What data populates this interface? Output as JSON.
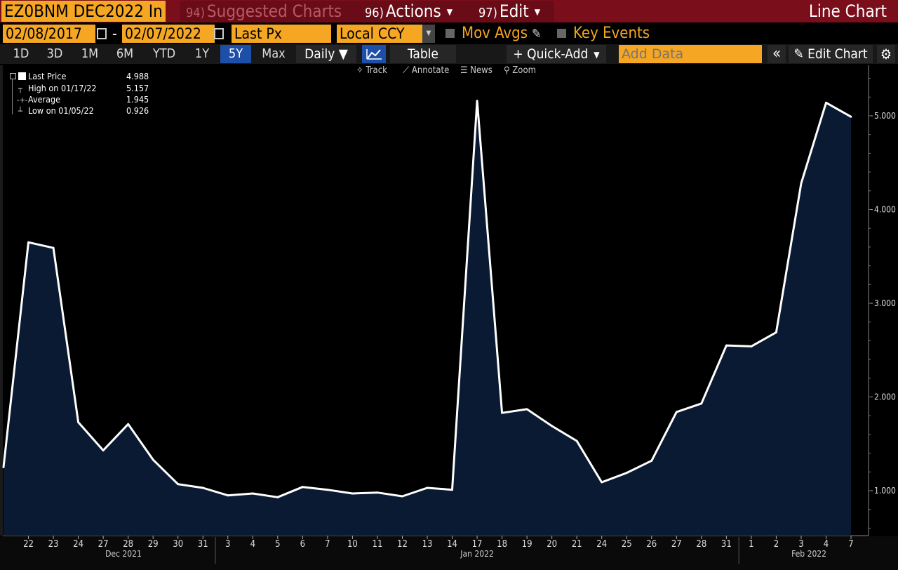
{
  "header": {
    "ticker": "EZ0BNM DEC2022 In",
    "suggested": {
      "num": "94)",
      "label": "Suggested Charts"
    },
    "actions": {
      "num": "96)",
      "label": "Actions"
    },
    "edit": {
      "num": "97)",
      "label": "Edit"
    },
    "title": "Line Chart"
  },
  "controls": {
    "start_date": "02/08/2017",
    "dash": "-",
    "end_date": "02/07/2022",
    "field": "Last Px",
    "currency": "Local CCY",
    "mov_avgs": "Mov Avgs",
    "key_events": "Key Events"
  },
  "ranges": [
    "1D",
    "3D",
    "1M",
    "6M",
    "YTD",
    "1Y",
    "5Y",
    "Max"
  ],
  "selected_range": "5Y",
  "toolbar": {
    "period": "Daily ▼",
    "table": "Table",
    "quick_add": "+ Quick-Add",
    "add_data_placeholder": "Add Data",
    "edit_chart": "Edit Chart"
  },
  "tools": {
    "track": "Track",
    "annotate": "Annotate",
    "news": "News",
    "zoom": "Zoom"
  },
  "legend": {
    "last_label": "Last Price",
    "last_value": "4.988",
    "high_label": "High on 01/17/22",
    "high_value": "5.157",
    "avg_label": "Average",
    "avg_value": "1.945",
    "low_label": "Low on 01/05/22",
    "low_value": "0.926"
  },
  "colors": {
    "line": "#ffffff",
    "fill": "#0b1a33",
    "accent": "#f5a623",
    "header": "#7a0e1a"
  },
  "chart_data": {
    "type": "area",
    "x": [
      "Dec 21",
      "22",
      "23",
      "24",
      "27",
      "28",
      "29",
      "30",
      "31",
      "3",
      "4",
      "5",
      "6",
      "7",
      "10",
      "11",
      "12",
      "13",
      "14",
      "17",
      "18",
      "19",
      "20",
      "21",
      "24",
      "25",
      "26",
      "27",
      "28",
      "31",
      "1",
      "2",
      "3",
      "4",
      "7"
    ],
    "values": [
      1.25,
      3.65,
      3.59,
      1.73,
      1.43,
      1.71,
      1.33,
      1.07,
      1.03,
      0.95,
      0.97,
      0.93,
      1.04,
      1.01,
      0.97,
      0.98,
      0.94,
      1.03,
      1.01,
      5.16,
      1.83,
      1.87,
      1.69,
      1.53,
      1.09,
      1.19,
      1.32,
      1.84,
      1.93,
      2.55,
      2.54,
      2.69,
      4.28,
      5.14,
      4.99
    ],
    "tick_labels": [
      "22",
      "23",
      "24",
      "27",
      "28",
      "29",
      "30",
      "31",
      "3",
      "4",
      "5",
      "6",
      "7",
      "10",
      "11",
      "12",
      "13",
      "14",
      "17",
      "18",
      "19",
      "20",
      "21",
      "24",
      "25",
      "26",
      "27",
      "28",
      "31",
      "1",
      "2",
      "3",
      "4",
      "7"
    ],
    "month_labels": [
      "Dec 2021",
      "Jan 2022",
      "Feb 2022"
    ],
    "ylim": [
      0.5,
      5.5
    ],
    "y_ticks": [
      1.0,
      2.0,
      3.0,
      4.0,
      5.0
    ],
    "y_tick_labels": [
      "1.000",
      "2.000",
      "3.000",
      "4.000",
      "5.000"
    ]
  }
}
